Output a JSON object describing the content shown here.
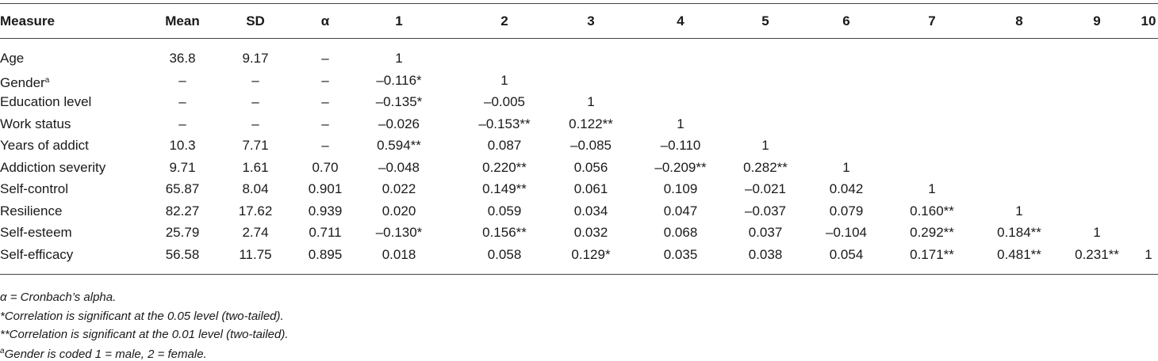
{
  "table": {
    "header": [
      "Measure",
      "Mean",
      "SD",
      "α",
      "1",
      "2",
      "3",
      "4",
      "5",
      "6",
      "7",
      "8",
      "9",
      "10"
    ],
    "rows": [
      [
        "Age",
        "36.8",
        "9.17",
        "–",
        "1"
      ],
      [
        {
          "text": "Gender",
          "sup": "a"
        },
        "–",
        "–",
        "–",
        "–0.116*",
        "1"
      ],
      [
        "Education level",
        "–",
        "–",
        "–",
        "–0.135*",
        "–0.005",
        "1"
      ],
      [
        "Work status",
        "–",
        "–",
        "–",
        "–0.026",
        "–0.153**",
        "0.122**",
        "1"
      ],
      [
        "Years of addict",
        "10.3",
        "7.71",
        "–",
        "0.594**",
        "0.087",
        "–0.085",
        "–0.110",
        "1"
      ],
      [
        "Addiction severity",
        "9.71",
        "1.61",
        "0.70",
        "–0.048",
        "0.220**",
        "0.056",
        "–0.209**",
        "0.282**",
        "1"
      ],
      [
        "Self-control",
        "65.87",
        "8.04",
        "0.901",
        "0.022",
        "0.149**",
        "0.061",
        "0.109",
        "–0.021",
        "0.042",
        "1"
      ],
      [
        "Resilience",
        "82.27",
        "17.62",
        "0.939",
        "0.020",
        "0.059",
        "0.034",
        "0.047",
        "–0.037",
        "0.079",
        "0.160**",
        "1"
      ],
      [
        "Self-esteem",
        "25.79",
        "2.74",
        "0.711",
        "–0.130*",
        "0.156**",
        "0.032",
        "0.068",
        "0.037",
        "–0.104",
        "0.292**",
        "0.184**",
        "1"
      ],
      [
        "Self-efficacy",
        "56.58",
        "11.75",
        "0.895",
        "0.018",
        "0.058",
        "0.129*",
        "0.035",
        "0.038",
        "0.054",
        "0.171**",
        "0.481**",
        "0.231**",
        "1"
      ]
    ],
    "notes": [
      "α = Cronbach’s alpha.",
      "*Correlation is significant at the 0.05 level (two-tailed).",
      "**Correlation is significant at the 0.01 level (two-tailed).",
      {
        "sup": "a",
        "text": "Gender is coded 1 = male, 2 = female."
      }
    ]
  }
}
